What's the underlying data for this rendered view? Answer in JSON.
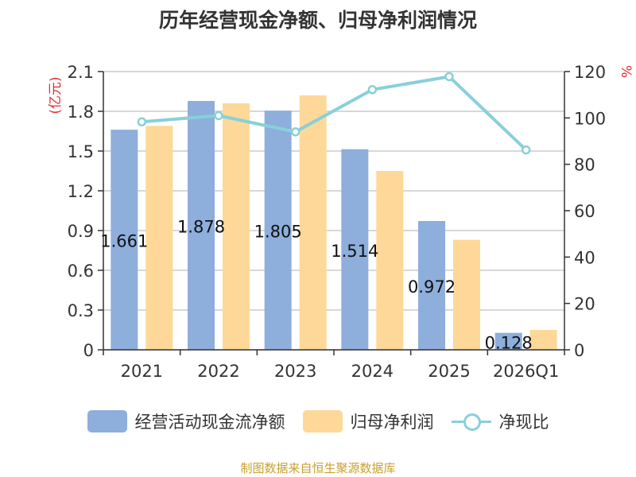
{
  "chart_data": {
    "type": "bar",
    "title": "历年经营现金净额、归母净利润情况",
    "categories": [
      "2021",
      "2022",
      "2023",
      "2024",
      "2025",
      "2026Q1"
    ],
    "left_axis_unit": "(亿元)",
    "right_axis_unit": "%",
    "left_ylim": [
      0,
      2.1
    ],
    "left_ticks": [
      "0",
      "0.3",
      "0.6",
      "0.9",
      "1.2",
      "1.5",
      "1.8",
      "2.1"
    ],
    "right_ylim": [
      0,
      120
    ],
    "right_ticks": [
      "0",
      "20",
      "40",
      "60",
      "80",
      "100",
      "120"
    ],
    "grid": true,
    "legend_position": "bottom",
    "series": [
      {
        "name": "经营活动现金流净额",
        "kind": "bar",
        "axis": "left",
        "color": "#8eaedb",
        "values": [
          1.661,
          1.878,
          1.805,
          1.514,
          0.972,
          0.128
        ],
        "labels": [
          "1.661",
          "1.878",
          "1.805",
          "1.514",
          "0.972",
          "0.128"
        ]
      },
      {
        "name": "归母净利润",
        "kind": "bar",
        "axis": "left",
        "color": "#fdd899",
        "values": [
          1.69,
          1.86,
          1.92,
          1.35,
          0.83,
          0.15
        ]
      },
      {
        "name": "净现比",
        "kind": "line",
        "axis": "right",
        "color": "#88d0da",
        "values": [
          98.3,
          101.0,
          94.0,
          112.2,
          117.8,
          86.2
        ]
      }
    ]
  },
  "source": "制图数据来自恒生聚源数据库"
}
